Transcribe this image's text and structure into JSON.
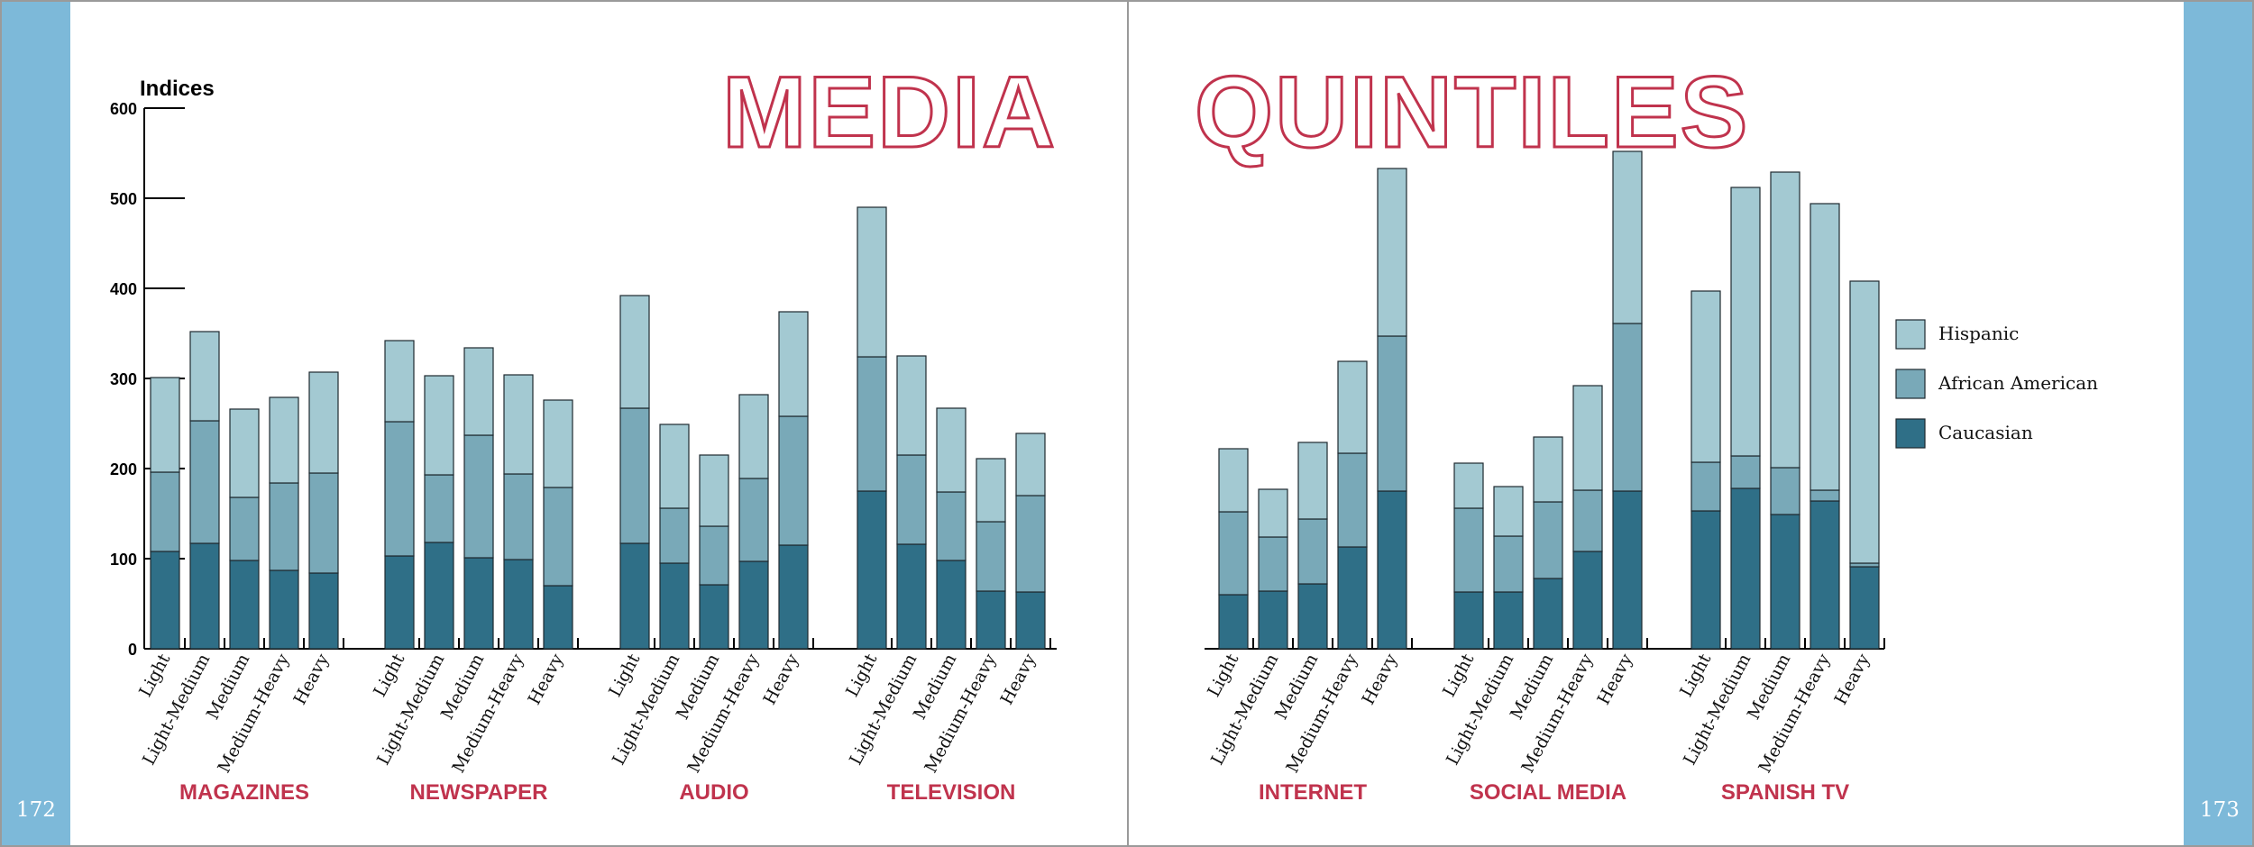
{
  "page": {
    "left_page_number": "172",
    "right_page_number": "173",
    "title_left": "MEDIA",
    "title_right": "QUINTILES"
  },
  "colors": {
    "sidebar": "#7db9d9",
    "title_outline": "#c0334d",
    "group_label": "#c0334d",
    "hispanic": "#a3c9d2",
    "african_american": "#79a9b8",
    "caucasian": "#2f6f87"
  },
  "chart_data": {
    "type": "bar",
    "stacked": true,
    "ylabel": "Indices",
    "ylim": [
      0,
      600
    ],
    "yticks": [
      0,
      100,
      200,
      300,
      400,
      500,
      600
    ],
    "categories": [
      "Light",
      "Light-Medium",
      "Medium",
      "Medium-Heavy",
      "Heavy"
    ],
    "legend": {
      "position": "right",
      "entries": [
        "Hispanic",
        "African American",
        "Caucasian"
      ]
    },
    "groups": [
      {
        "name": "MAGAZINES",
        "page": "left",
        "series": [
          {
            "name": "Caucasian",
            "values": [
              108,
              117,
              98,
              87,
              84
            ]
          },
          {
            "name": "African American",
            "values": [
              88,
              136,
              70,
              97,
              111
            ]
          },
          {
            "name": "Hispanic",
            "values": [
              105,
              99,
              98,
              95,
              112
            ]
          }
        ]
      },
      {
        "name": "NEWSPAPER",
        "page": "left",
        "series": [
          {
            "name": "Caucasian",
            "values": [
              103,
              118,
              101,
              99,
              70
            ]
          },
          {
            "name": "African American",
            "values": [
              149,
              75,
              136,
              95,
              109
            ]
          },
          {
            "name": "Hispanic",
            "values": [
              90,
              110,
              97,
              110,
              97
            ]
          }
        ]
      },
      {
        "name": "AUDIO",
        "page": "left",
        "series": [
          {
            "name": "Caucasian",
            "values": [
              117,
              95,
              71,
              97,
              115
            ]
          },
          {
            "name": "African American",
            "values": [
              150,
              61,
              65,
              92,
              143
            ]
          },
          {
            "name": "Hispanic",
            "values": [
              125,
              93,
              79,
              93,
              116
            ]
          }
        ]
      },
      {
        "name": "TELEVISION",
        "page": "left",
        "series": [
          {
            "name": "Caucasian",
            "values": [
              175,
              116,
              98,
              64,
              63
            ]
          },
          {
            "name": "African American",
            "values": [
              149,
              99,
              76,
              77,
              107
            ]
          },
          {
            "name": "Hispanic",
            "values": [
              166,
              110,
              93,
              70,
              69
            ]
          }
        ]
      },
      {
        "name": "INTERNET",
        "page": "right",
        "series": [
          {
            "name": "Caucasian",
            "values": [
              60,
              64,
              72,
              113,
              175
            ]
          },
          {
            "name": "African American",
            "values": [
              92,
              60,
              72,
              104,
              172
            ]
          },
          {
            "name": "Hispanic",
            "values": [
              70,
              53,
              85,
              102,
              186
            ]
          }
        ]
      },
      {
        "name": "SOCIAL MEDIA",
        "page": "right",
        "series": [
          {
            "name": "Caucasian",
            "values": [
              63,
              63,
              78,
              108,
              175
            ]
          },
          {
            "name": "African American",
            "values": [
              93,
              62,
              85,
              68,
              186
            ]
          },
          {
            "name": "Hispanic",
            "values": [
              50,
              55,
              72,
              116,
              191
            ]
          }
        ]
      },
      {
        "name": "SPANISH TV",
        "page": "right",
        "series": [
          {
            "name": "Caucasian",
            "values": [
              153,
              178,
              149,
              164,
              91
            ]
          },
          {
            "name": "African American",
            "values": [
              54,
              36,
              52,
              12,
              4
            ]
          },
          {
            "name": "Hispanic",
            "values": [
              190,
              298,
              328,
              318,
              313
            ]
          }
        ]
      }
    ]
  }
}
